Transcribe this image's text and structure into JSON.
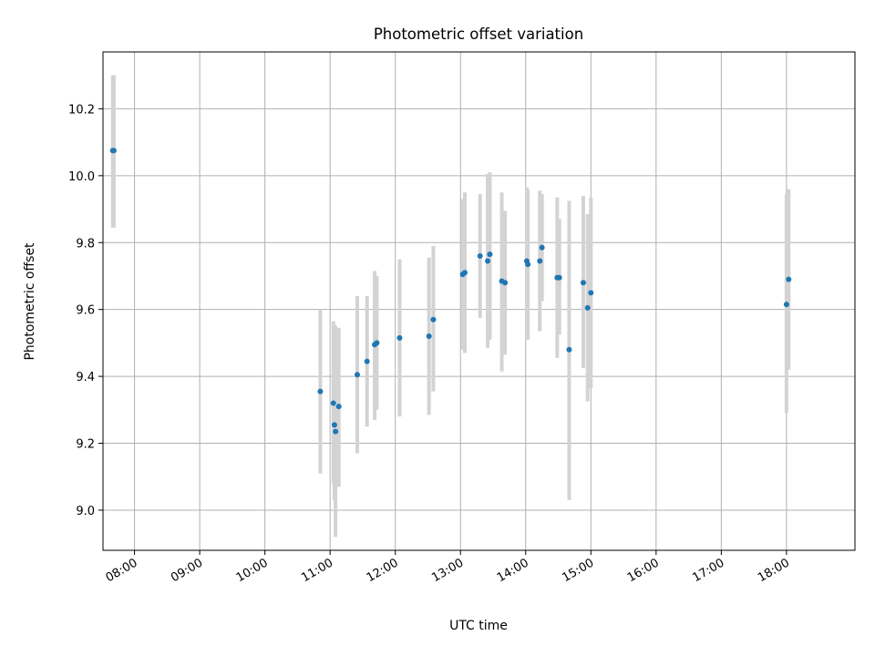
{
  "chart_data": {
    "type": "scatter",
    "title": "Photometric offset variation",
    "xlabel": "UTC time",
    "ylabel": "Photometric offset",
    "x_ticks": [
      "08:00",
      "09:00",
      "10:00",
      "11:00",
      "12:00",
      "13:00",
      "14:00",
      "15:00",
      "16:00",
      "17:00",
      "18:00"
    ],
    "y_ticks": [
      "9.0",
      "9.2",
      "9.4",
      "9.6",
      "9.8",
      "10.0",
      "10.2"
    ],
    "ylim": [
      8.88,
      10.37
    ],
    "xlim": [
      "07:31",
      "19:03"
    ],
    "grid": true,
    "colors": {
      "point": "#1f77b4",
      "errorbar": "#d3d3d3",
      "grid": "#b0b0b0"
    },
    "points": [
      {
        "x": "07:40",
        "y": 10.075,
        "lo": 9.845,
        "hi": 10.3
      },
      {
        "x": "07:41",
        "y": 10.075,
        "lo": 9.845,
        "hi": 10.3
      },
      {
        "x": "10:51",
        "y": 9.355,
        "lo": 9.11,
        "hi": 9.6
      },
      {
        "x": "11:03",
        "y": 9.32,
        "lo": 9.08,
        "hi": 9.565
      },
      {
        "x": "11:04",
        "y": 9.255,
        "lo": 9.03,
        "hi": 9.555
      },
      {
        "x": "11:05",
        "y": 9.235,
        "lo": 8.92,
        "hi": 9.55
      },
      {
        "x": "11:08",
        "y": 9.31,
        "lo": 9.07,
        "hi": 9.545
      },
      {
        "x": "11:25",
        "y": 9.405,
        "lo": 9.17,
        "hi": 9.64
      },
      {
        "x": "11:34",
        "y": 9.445,
        "lo": 9.25,
        "hi": 9.64
      },
      {
        "x": "11:41",
        "y": 9.495,
        "lo": 9.27,
        "hi": 9.715
      },
      {
        "x": "11:43",
        "y": 9.5,
        "lo": 9.3,
        "hi": 9.7
      },
      {
        "x": "12:04",
        "y": 9.515,
        "lo": 9.28,
        "hi": 9.75
      },
      {
        "x": "12:31",
        "y": 9.52,
        "lo": 9.285,
        "hi": 9.755
      },
      {
        "x": "12:35",
        "y": 9.57,
        "lo": 9.355,
        "hi": 9.79
      },
      {
        "x": "13:02",
        "y": 9.705,
        "lo": 9.48,
        "hi": 9.93
      },
      {
        "x": "13:04",
        "y": 9.71,
        "lo": 9.47,
        "hi": 9.95
      },
      {
        "x": "13:18",
        "y": 9.76,
        "lo": 9.575,
        "hi": 9.945
      },
      {
        "x": "13:25",
        "y": 9.745,
        "lo": 9.485,
        "hi": 10.005
      },
      {
        "x": "13:27",
        "y": 9.765,
        "lo": 9.51,
        "hi": 10.01
      },
      {
        "x": "13:38",
        "y": 9.685,
        "lo": 9.415,
        "hi": 9.95
      },
      {
        "x": "13:41",
        "y": 9.68,
        "lo": 9.465,
        "hi": 9.895
      },
      {
        "x": "14:01",
        "y": 9.745,
        "lo": 9.51,
        "hi": 9.965
      },
      {
        "x": "14:02",
        "y": 9.735,
        "lo": 9.51,
        "hi": 9.96
      },
      {
        "x": "14:13",
        "y": 9.745,
        "lo": 9.535,
        "hi": 9.955
      },
      {
        "x": "14:15",
        "y": 9.785,
        "lo": 9.625,
        "hi": 9.945
      },
      {
        "x": "14:29",
        "y": 9.695,
        "lo": 9.455,
        "hi": 9.935
      },
      {
        "x": "14:31",
        "y": 9.695,
        "lo": 9.525,
        "hi": 9.87
      },
      {
        "x": "14:40",
        "y": 9.48,
        "lo": 9.03,
        "hi": 9.925
      },
      {
        "x": "14:53",
        "y": 9.68,
        "lo": 9.425,
        "hi": 9.94
      },
      {
        "x": "14:57",
        "y": 9.605,
        "lo": 9.325,
        "hi": 9.885
      },
      {
        "x": "15:00",
        "y": 9.65,
        "lo": 9.365,
        "hi": 9.935
      },
      {
        "x": "18:00",
        "y": 9.615,
        "lo": 9.29,
        "hi": 9.945
      },
      {
        "x": "18:02",
        "y": 9.69,
        "lo": 9.42,
        "hi": 9.96
      }
    ]
  }
}
